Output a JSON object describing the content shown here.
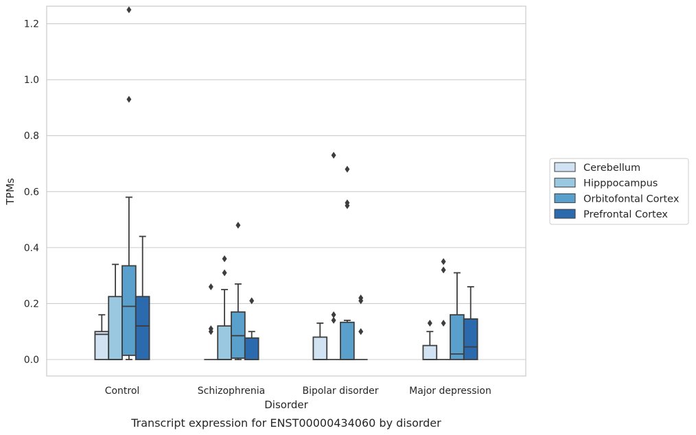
{
  "chart_data": {
    "type": "box",
    "title": "",
    "caption": "Transcript expression for ENST00000434060 by disorder",
    "xlabel": "Disorder",
    "ylabel": "TPMs",
    "ylim": [
      -0.06,
      1.32
    ],
    "yticks": [
      "0.0",
      "0.2",
      "0.4",
      "0.6",
      "0.8",
      "1.0",
      "1.2"
    ],
    "ytick_values": [
      0.0,
      0.2,
      0.4,
      0.6,
      0.8,
      1.0,
      1.2
    ],
    "grid": "horizontal",
    "legend_position": "right",
    "categories": [
      "Control",
      "Schizophrenia",
      "Bipolar disorder",
      "Major depression"
    ],
    "series": [
      {
        "name": "Cerebellum",
        "color": "#d1e2f2",
        "boxes": [
          {
            "whislo": 0.0,
            "q1": 0.0,
            "med": 0.09,
            "q3": 0.1,
            "whishi": 0.16,
            "fliers": []
          },
          {
            "whislo": 0.0,
            "q1": 0.0,
            "med": 0.0,
            "q3": 0.0,
            "whishi": 0.0,
            "fliers": [
              0.26,
              0.11,
              0.1
            ]
          },
          {
            "whislo": 0.0,
            "q1": 0.0,
            "med": 0.0,
            "q3": 0.08,
            "whishi": 0.13,
            "fliers": []
          },
          {
            "whislo": 0.0,
            "q1": 0.0,
            "med": 0.0,
            "q3": 0.05,
            "whishi": 0.1,
            "fliers": [
              0.13
            ]
          }
        ]
      },
      {
        "name": "Hipppocampus",
        "color": "#9ac8e0",
        "boxes": [
          {
            "whislo": 0.0,
            "q1": 0.0,
            "med": 0.0,
            "q3": 0.225,
            "whishi": 0.34,
            "fliers": []
          },
          {
            "whislo": 0.0,
            "q1": 0.0,
            "med": 0.0,
            "q3": 0.12,
            "whishi": 0.25,
            "fliers": [
              0.36,
              0.31
            ]
          },
          {
            "whislo": 0.0,
            "q1": 0.0,
            "med": 0.0,
            "q3": 0.0,
            "whishi": 0.0,
            "fliers": [
              0.73,
              0.16,
              0.14
            ]
          },
          {
            "whislo": 0.0,
            "q1": 0.0,
            "med": 0.0,
            "q3": 0.0,
            "whishi": 0.0,
            "fliers": [
              0.35,
              0.32,
              0.13
            ]
          }
        ]
      },
      {
        "name": "Orbitofontal Cortex",
        "color": "#5aa0cd",
        "boxes": [
          {
            "whislo": 0.0,
            "q1": 0.015,
            "med": 0.19,
            "q3": 0.335,
            "whishi": 0.58,
            "fliers": [
              1.25,
              0.93
            ]
          },
          {
            "whislo": 0.0,
            "q1": 0.005,
            "med": 0.085,
            "q3": 0.17,
            "whishi": 0.27,
            "fliers": [
              0.48
            ]
          },
          {
            "whislo": 0.0,
            "q1": 0.0,
            "med": 0.0,
            "q3": 0.133,
            "whishi": 0.14,
            "fliers": [
              0.68,
              0.56,
              0.55
            ]
          },
          {
            "whislo": 0.0,
            "q1": 0.0,
            "med": 0.02,
            "q3": 0.16,
            "whishi": 0.31,
            "fliers": []
          }
        ]
      },
      {
        "name": "Prefrontal Cortex",
        "color": "#2a6aad",
        "boxes": [
          {
            "whislo": 0.0,
            "q1": 0.0,
            "med": 0.12,
            "q3": 0.225,
            "whishi": 0.44,
            "fliers": []
          },
          {
            "whislo": 0.0,
            "q1": 0.0,
            "med": 0.0,
            "q3": 0.077,
            "whishi": 0.1,
            "fliers": [
              0.21
            ]
          },
          {
            "whislo": 0.0,
            "q1": 0.0,
            "med": 0.0,
            "q3": 0.0,
            "whishi": 0.0,
            "fliers": [
              0.22,
              0.21,
              0.1
            ]
          },
          {
            "whislo": 0.0,
            "q1": 0.0,
            "med": 0.045,
            "q3": 0.145,
            "whishi": 0.26,
            "fliers": []
          }
        ]
      }
    ]
  }
}
